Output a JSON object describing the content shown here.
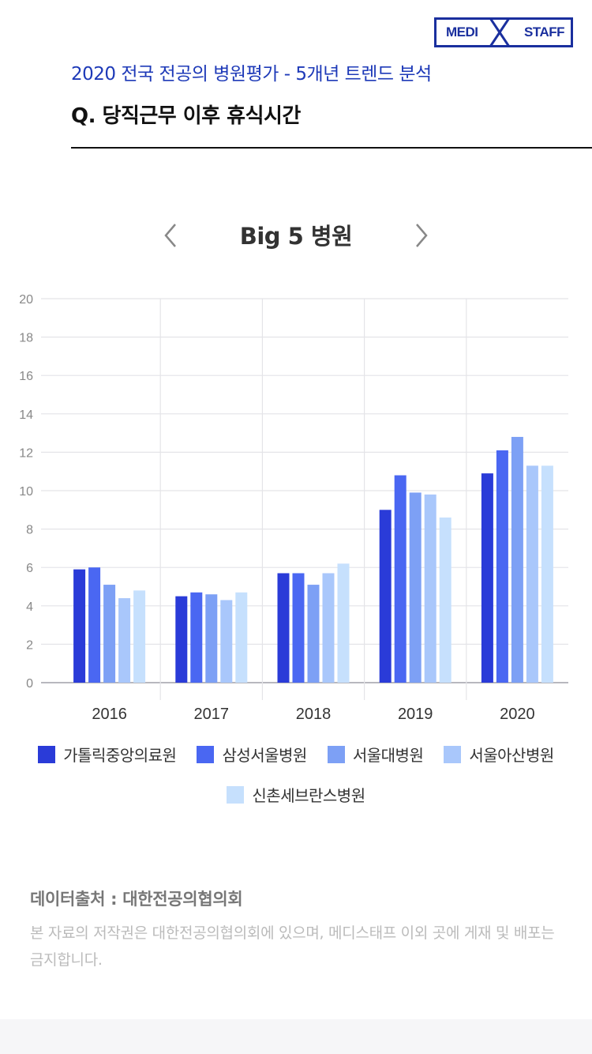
{
  "logo": {
    "left": "MEDI",
    "right": "STAFF"
  },
  "header": {
    "subtitle": "2020 전국 전공의 병원평가 - 5개년 트렌드 분석",
    "question": "Q. 당직근무 이후 휴식시간"
  },
  "nav": {
    "prev_icon": "chevron-left-icon",
    "next_icon": "chevron-right-icon"
  },
  "colors": [
    "#2a3bd8",
    "#4a67f2",
    "#7da0f5",
    "#a9c7fb",
    "#c6e0fd"
  ],
  "chart_data": {
    "type": "bar",
    "title": "Big 5 병원",
    "categories": [
      "2016",
      "2017",
      "2018",
      "2019",
      "2020"
    ],
    "ylim": [
      0,
      20
    ],
    "yticks": [
      "0",
      "2",
      "4",
      "6",
      "8",
      "10",
      "12",
      "14",
      "16",
      "18",
      "20"
    ],
    "grid": true,
    "legend_position": "bottom",
    "series": [
      {
        "name": "가톨릭중앙의료원",
        "values": [
          5.9,
          4.5,
          5.7,
          9.0,
          10.9
        ]
      },
      {
        "name": "삼성서울병원",
        "values": [
          6.0,
          4.7,
          5.7,
          10.8,
          12.1
        ]
      },
      {
        "name": "서울대병원",
        "values": [
          5.1,
          4.6,
          5.1,
          9.9,
          12.8
        ]
      },
      {
        "name": "서울아산병원",
        "values": [
          4.4,
          4.3,
          5.7,
          9.8,
          11.3
        ]
      },
      {
        "name": "신촌세브란스병원",
        "values": [
          4.8,
          4.7,
          6.2,
          8.6,
          11.3
        ]
      }
    ]
  },
  "source": "데이터출처 : 대한전공의협의회",
  "notice": "본 자료의 저작권은 대한전공의협의회에 있으며, 메디스태프 이외 곳에 게재 및 배포는 금지합니다."
}
